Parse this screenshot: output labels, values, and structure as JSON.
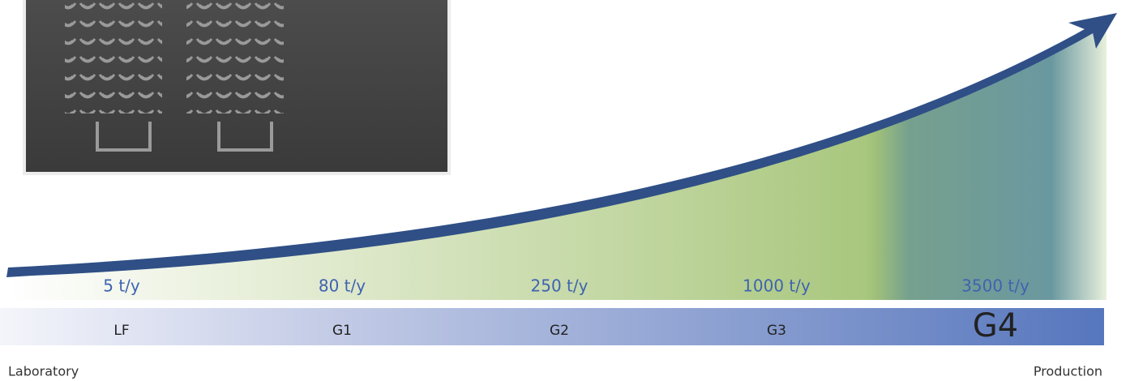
{
  "stages": [
    {
      "capacity": "5 t/y",
      "label": "LF"
    },
    {
      "capacity": "80 t/y",
      "label": "G1"
    },
    {
      "capacity": "250 t/y",
      "label": "G2"
    },
    {
      "capacity": "1000 t/y",
      "label": "G3"
    },
    {
      "capacity": "3500 t/y",
      "label": "G4"
    }
  ],
  "start_label": "Laboratory",
  "end_label": "Production"
}
